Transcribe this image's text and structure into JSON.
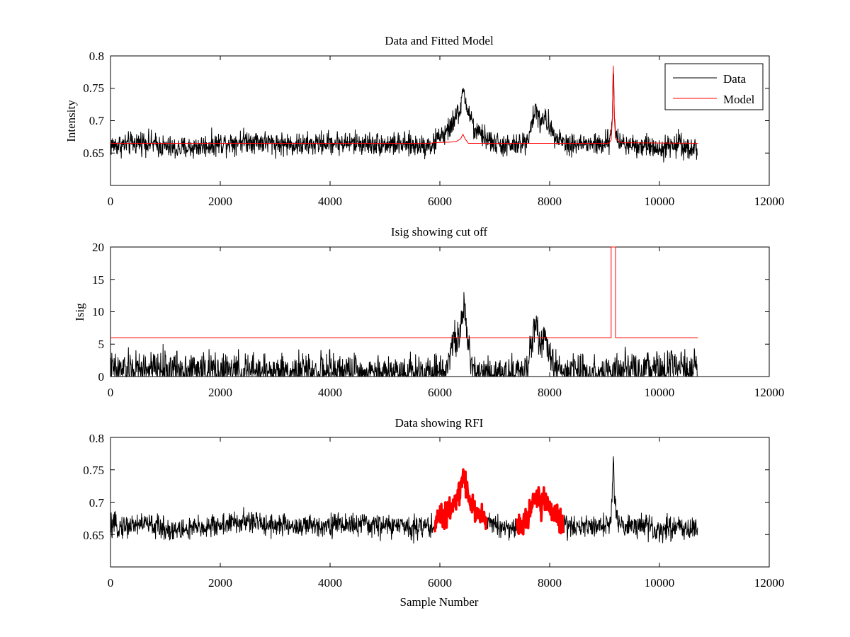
{
  "colors": {
    "data": "#000000",
    "model": "#ff0000",
    "rfi": "#ff0000",
    "background": "#ffffff"
  },
  "chart_data": [
    {
      "id": "top",
      "type": "line",
      "title": "Data and Fitted Model",
      "xlabel": "",
      "ylabel": "Intensity",
      "xlim": [
        0,
        12000
      ],
      "ylim": [
        0.6,
        0.8
      ],
      "xticks": [
        "0",
        "2000",
        "4000",
        "6000",
        "8000",
        "10000",
        "12000"
      ],
      "yticks": [
        "0.65",
        "0.7",
        "0.75",
        "0.8"
      ],
      "legend": {
        "position": "top-right",
        "entries": [
          "Data",
          "Model"
        ]
      },
      "series": [
        {
          "name": "Data",
          "color": "#000000",
          "noise": 0.009,
          "n_samples": 10700,
          "baseline": [
            [
              0,
              0.662
            ],
            [
              300,
              0.663
            ],
            [
              600,
              0.668
            ],
            [
              900,
              0.661
            ],
            [
              1200,
              0.656
            ],
            [
              1600,
              0.66
            ],
            [
              2000,
              0.665
            ],
            [
              2500,
              0.67
            ],
            [
              3000,
              0.665
            ],
            [
              3500,
              0.662
            ],
            [
              4000,
              0.666
            ],
            [
              4500,
              0.665
            ],
            [
              5000,
              0.664
            ],
            [
              5500,
              0.662
            ],
            [
              5900,
              0.663
            ],
            [
              6000,
              0.68
            ],
            [
              6100,
              0.676
            ],
            [
              6200,
              0.693
            ],
            [
              6300,
              0.705
            ],
            [
              6380,
              0.722
            ],
            [
              6440,
              0.745
            ],
            [
              6500,
              0.718
            ],
            [
              6580,
              0.7
            ],
            [
              6650,
              0.68
            ],
            [
              6750,
              0.678
            ],
            [
              6850,
              0.673
            ],
            [
              7000,
              0.664
            ],
            [
              7300,
              0.66
            ],
            [
              7500,
              0.664
            ],
            [
              7600,
              0.673
            ],
            [
              7700,
              0.705
            ],
            [
              7750,
              0.718
            ],
            [
              7800,
              0.705
            ],
            [
              7850,
              0.69
            ],
            [
              7900,
              0.708
            ],
            [
              8000,
              0.69
            ],
            [
              8100,
              0.68
            ],
            [
              8200,
              0.672
            ],
            [
              8300,
              0.664
            ],
            [
              8600,
              0.664
            ],
            [
              9000,
              0.663
            ],
            [
              9100,
              0.668
            ],
            [
              9140,
              0.705
            ],
            [
              9160,
              0.78
            ],
            [
              9180,
              0.705
            ],
            [
              9230,
              0.668
            ],
            [
              9400,
              0.664
            ],
            [
              9700,
              0.662
            ],
            [
              10000,
              0.658
            ],
            [
              10300,
              0.662
            ],
            [
              10350,
              0.668
            ],
            [
              10450,
              0.66
            ],
            [
              10700,
              0.657
            ]
          ]
        },
        {
          "name": "Model",
          "color": "#ff0000",
          "noise": 0,
          "points": [
            [
              0,
              0.665
            ],
            [
              5800,
              0.665
            ],
            [
              5900,
              0.666
            ],
            [
              6200,
              0.667
            ],
            [
              6300,
              0.668
            ],
            [
              6380,
              0.672
            ],
            [
              6420,
              0.679
            ],
            [
              6460,
              0.672
            ],
            [
              6520,
              0.665
            ],
            [
              9080,
              0.665
            ],
            [
              9120,
              0.67
            ],
            [
              9140,
              0.7
            ],
            [
              9160,
              0.785
            ],
            [
              9180,
              0.7
            ],
            [
              9200,
              0.672
            ],
            [
              9300,
              0.666
            ],
            [
              10700,
              0.665
            ]
          ]
        }
      ]
    },
    {
      "id": "middle",
      "type": "line",
      "title": "Isig showing cut off",
      "xlabel": "",
      "ylabel": "Isig",
      "xlim": [
        0,
        12000
      ],
      "ylim": [
        0,
        20
      ],
      "xticks": [
        "0",
        "2000",
        "4000",
        "6000",
        "8000",
        "10000",
        "12000"
      ],
      "yticks": [
        "0",
        "5",
        "10",
        "15",
        "20"
      ],
      "series": [
        {
          "color": "#000000",
          "noise": 1.4,
          "n_samples": 10700,
          "baseline": [
            [
              0,
              0.9
            ],
            [
              1000,
              1.2
            ],
            [
              1300,
              1.2
            ],
            [
              2000,
              0.8
            ],
            [
              3000,
              0.7
            ],
            [
              4000,
              0.8
            ],
            [
              5000,
              0.7
            ],
            [
              5900,
              0.9
            ],
            [
              6000,
              0.8
            ],
            [
              6100,
              1.0
            ],
            [
              6200,
              4.5
            ],
            [
              6300,
              5.8
            ],
            [
              6380,
              7.5
            ],
            [
              6440,
              10.0
            ],
            [
              6500,
              6.0
            ],
            [
              6580,
              2.5
            ],
            [
              6650,
              0.8
            ],
            [
              6800,
              0.8
            ],
            [
              7000,
              0.6
            ],
            [
              7500,
              0.6
            ],
            [
              7600,
              1.5
            ],
            [
              7700,
              7.0
            ],
            [
              7750,
              8.3
            ],
            [
              7800,
              6.0
            ],
            [
              7850,
              5.0
            ],
            [
              7900,
              6.0
            ],
            [
              8000,
              3.0
            ],
            [
              8100,
              1.5
            ],
            [
              8300,
              0.7
            ],
            [
              9000,
              0.7
            ],
            [
              10000,
              1.0
            ],
            [
              10700,
              1.0
            ]
          ]
        },
        {
          "color": "#ff0000",
          "noise": 0,
          "points": [
            [
              0,
              6
            ],
            [
              9120,
              6
            ],
            [
              9120,
              20
            ],
            [
              9200,
              20
            ],
            [
              9200,
              6
            ],
            [
              10700,
              6
            ]
          ]
        }
      ]
    },
    {
      "id": "bottom",
      "type": "line",
      "title": "Data showing RFI",
      "xlabel": "Sample Number",
      "ylabel": "",
      "xlim": [
        0,
        12000
      ],
      "ylim": [
        0.6,
        0.8
      ],
      "xticks": [
        "0",
        "2000",
        "4000",
        "6000",
        "8000",
        "10000",
        "12000"
      ],
      "yticks": [
        "0.65",
        "0.7",
        "0.75",
        "0.8"
      ],
      "series": [
        {
          "color": "#000000",
          "noise": 0.009,
          "n_samples": 10700,
          "baseline": [
            [
              0,
              0.662
            ],
            [
              300,
              0.663
            ],
            [
              600,
              0.668
            ],
            [
              900,
              0.661
            ],
            [
              1200,
              0.656
            ],
            [
              1600,
              0.66
            ],
            [
              2000,
              0.665
            ],
            [
              2500,
              0.67
            ],
            [
              3000,
              0.665
            ],
            [
              3500,
              0.662
            ],
            [
              4000,
              0.666
            ],
            [
              4500,
              0.665
            ],
            [
              5000,
              0.664
            ],
            [
              5500,
              0.662
            ],
            [
              5900,
              0.663
            ],
            [
              6000,
              0.68
            ],
            [
              6100,
              0.676
            ],
            [
              6200,
              0.693
            ],
            [
              6300,
              0.705
            ],
            [
              6380,
              0.722
            ],
            [
              6440,
              0.745
            ],
            [
              6500,
              0.718
            ],
            [
              6580,
              0.7
            ],
            [
              6650,
              0.68
            ],
            [
              6750,
              0.678
            ],
            [
              6850,
              0.673
            ],
            [
              7000,
              0.664
            ],
            [
              7300,
              0.66
            ],
            [
              7500,
              0.664
            ],
            [
              7600,
              0.673
            ],
            [
              7700,
              0.705
            ],
            [
              7750,
              0.718
            ],
            [
              7800,
              0.705
            ],
            [
              7850,
              0.69
            ],
            [
              7900,
              0.708
            ],
            [
              8000,
              0.69
            ],
            [
              8100,
              0.68
            ],
            [
              8200,
              0.672
            ],
            [
              8300,
              0.664
            ],
            [
              8600,
              0.664
            ],
            [
              9000,
              0.663
            ],
            [
              9100,
              0.668
            ],
            [
              9140,
              0.705
            ],
            [
              9160,
              0.78
            ],
            [
              9180,
              0.705
            ],
            [
              9230,
              0.668
            ],
            [
              9400,
              0.664
            ],
            [
              9700,
              0.662
            ],
            [
              10000,
              0.658
            ],
            [
              10300,
              0.662
            ],
            [
              10350,
              0.668
            ],
            [
              10450,
              0.66
            ],
            [
              10700,
              0.657
            ]
          ],
          "highlight_ranges": [
            [
              5900,
              6850
            ],
            [
              7400,
              8250
            ]
          ],
          "highlight_color": "#ff0000"
        }
      ]
    }
  ]
}
